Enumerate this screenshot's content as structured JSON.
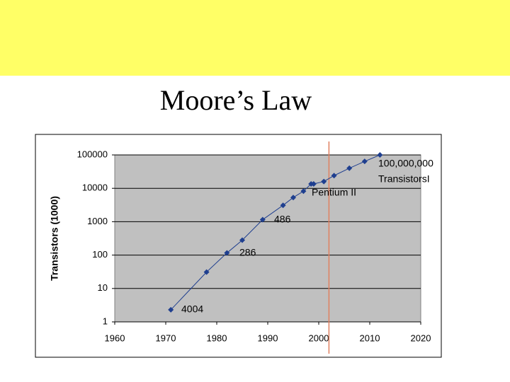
{
  "title": "Moore’s Law",
  "chart_data": {
    "type": "line",
    "y_label": "Transistors (1000)",
    "x": [
      1971,
      1978,
      1982,
      1985,
      1989,
      1993,
      1995,
      1997,
      1998.5,
      1999,
      2001,
      2003,
      2006,
      2009,
      2012
    ],
    "series": [
      {
        "name": "Transistors",
        "color": "#1f3f8f",
        "values": [
          2.3,
          31,
          116,
          280,
          1150,
          3100,
          5300,
          8200,
          13500,
          13500,
          16000,
          24000,
          40000,
          64000,
          100000
        ]
      }
    ],
    "xlim": [
      1960,
      2020
    ],
    "xticks": [
      1960,
      1970,
      1980,
      1990,
      2000,
      2010,
      2020
    ],
    "ylim": [
      1,
      100000
    ],
    "yticks": [
      1,
      10,
      100,
      1000,
      10000,
      100000
    ],
    "log_y": true,
    "grid": true,
    "plot_background": "#c0c0c0",
    "vline": {
      "x": 2002,
      "color": "#e08060"
    },
    "annotations": [
      "4004",
      "286",
      "486",
      "Pentium II",
      "100,000,000",
      "TransistorsI"
    ]
  }
}
